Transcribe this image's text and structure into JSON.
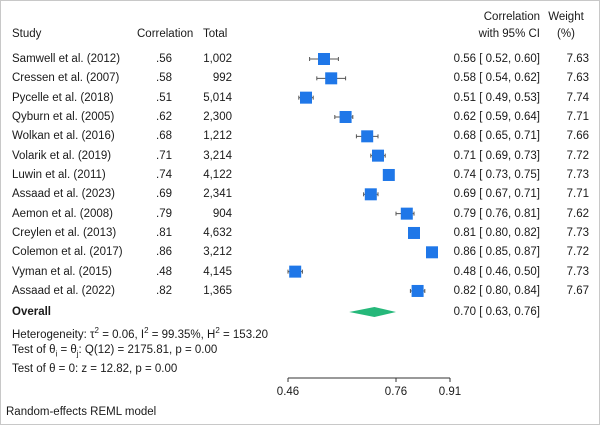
{
  "header": {
    "study": "Study",
    "correlation": "Correlation",
    "total": "Total",
    "ci_line1": "Correlation",
    "ci_line2": "with 95% CI",
    "weight_line1": "Weight",
    "weight_line2": "(%)"
  },
  "overall": {
    "label": "Overall",
    "ci_text": "0.70 [ 0.63, 0.76]"
  },
  "heterogeneity": "Heterogeneity: τ² = 0.06, I² = 99.35%, H² = 153.20",
  "test_theta_eq": "Test of θi = θj: Q(12) = 2175.81, p = 0.00",
  "test_theta_zero": "Test of θ = 0: z = 12.82, p = 0.00",
  "footer": "Random-effects REML model",
  "colors": {
    "marker": "#1f77e8",
    "diamond": "#26b87a",
    "border": "#c8c8c8"
  },
  "chart_data": {
    "type": "forest",
    "x_ticks": [
      0.46,
      0.76,
      0.91
    ],
    "x_tick_labels": [
      "0.46",
      "0.76",
      "0.91"
    ],
    "xlim": [
      0.46,
      0.91
    ],
    "studies": [
      {
        "name": "Samwell et al. (2012)",
        "corr_text": ".56",
        "total": "1,002",
        "est": 0.56,
        "lo": 0.52,
        "hi": 0.6,
        "ci_text": "0.56 [ 0.52, 0.60]",
        "weight": "7.63"
      },
      {
        "name": "Cressen et al. (2007)",
        "corr_text": ".58",
        "total": "992",
        "est": 0.58,
        "lo": 0.54,
        "hi": 0.62,
        "ci_text": "0.58 [ 0.54, 0.62]",
        "weight": "7.63"
      },
      {
        "name": "Pycelle et al. (2018)",
        "corr_text": ".51",
        "total": "5,014",
        "est": 0.51,
        "lo": 0.49,
        "hi": 0.53,
        "ci_text": "0.51 [ 0.49, 0.53]",
        "weight": "7.74"
      },
      {
        "name": "Qyburn et al. (2005)",
        "corr_text": ".62",
        "total": "2,300",
        "est": 0.62,
        "lo": 0.59,
        "hi": 0.64,
        "ci_text": "0.62 [ 0.59, 0.64]",
        "weight": "7.71"
      },
      {
        "name": "Wolkan et al. (2016)",
        "corr_text": ".68",
        "total": "1,212",
        "est": 0.68,
        "lo": 0.65,
        "hi": 0.71,
        "ci_text": "0.68 [ 0.65, 0.71]",
        "weight": "7.66"
      },
      {
        "name": "Volarik et al. (2019)",
        "corr_text": ".71",
        "total": "3,214",
        "est": 0.71,
        "lo": 0.69,
        "hi": 0.73,
        "ci_text": "0.71 [ 0.69, 0.73]",
        "weight": "7.72"
      },
      {
        "name": "Luwin et al. (2011)",
        "corr_text": ".74",
        "total": "4,122",
        "est": 0.74,
        "lo": 0.73,
        "hi": 0.75,
        "ci_text": "0.74 [ 0.73, 0.75]",
        "weight": "7.73"
      },
      {
        "name": "Assaad et al. (2023)",
        "corr_text": ".69",
        "total": "2,341",
        "est": 0.69,
        "lo": 0.67,
        "hi": 0.71,
        "ci_text": "0.69 [ 0.67, 0.71]",
        "weight": "7.71"
      },
      {
        "name": "Aemon et al. (2008)",
        "corr_text": ".79",
        "total": "904",
        "est": 0.79,
        "lo": 0.76,
        "hi": 0.81,
        "ci_text": "0.79 [ 0.76, 0.81]",
        "weight": "7.62"
      },
      {
        "name": "Creylen et al. (2013)",
        "corr_text": ".81",
        "total": "4,632",
        "est": 0.81,
        "lo": 0.8,
        "hi": 0.82,
        "ci_text": "0.81 [ 0.80, 0.82]",
        "weight": "7.73"
      },
      {
        "name": "Colemon et al. (2017)",
        "corr_text": ".86",
        "total": "3,212",
        "est": 0.86,
        "lo": 0.85,
        "hi": 0.87,
        "ci_text": "0.86 [ 0.85, 0.87]",
        "weight": "7.72"
      },
      {
        "name": "Vyman et al. (2015)",
        "corr_text": ".48",
        "total": "4,145",
        "est": 0.48,
        "lo": 0.46,
        "hi": 0.5,
        "ci_text": "0.48 [ 0.46, 0.50]",
        "weight": "7.73"
      },
      {
        "name": "Assaad et al. (2022)",
        "corr_text": ".82",
        "total": "1,365",
        "est": 0.82,
        "lo": 0.8,
        "hi": 0.84,
        "ci_text": "0.82 [ 0.80, 0.84]",
        "weight": "7.67"
      }
    ],
    "overall": {
      "est": 0.7,
      "lo": 0.63,
      "hi": 0.76
    }
  }
}
